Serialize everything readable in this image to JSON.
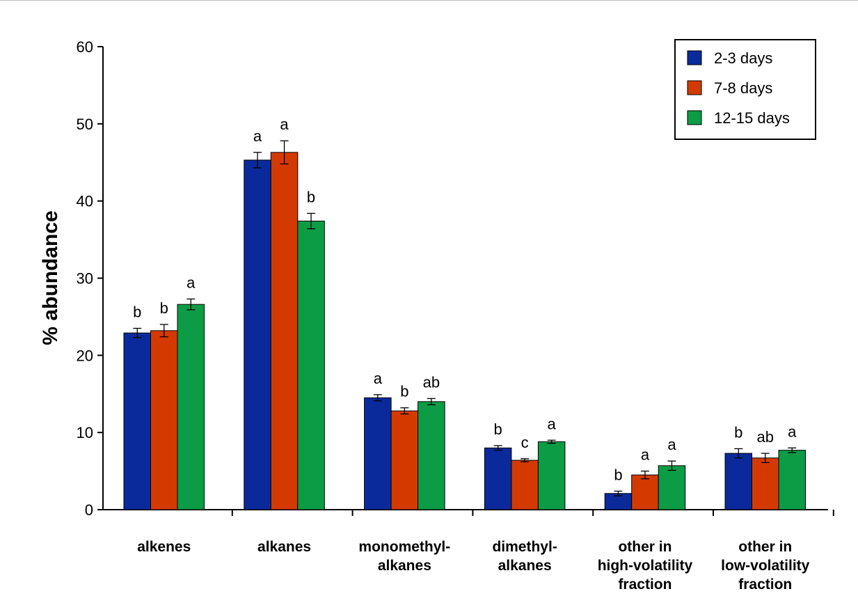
{
  "chart_data": {
    "type": "bar",
    "ylabel": "% abundance",
    "ylim": [
      0,
      60
    ],
    "yticks": [
      0,
      10,
      20,
      30,
      40,
      50,
      60
    ],
    "grid": false,
    "legend_position": "top-right",
    "categories": [
      [
        "alkenes"
      ],
      [
        "alkanes"
      ],
      [
        "monomethyl-",
        "alkanes"
      ],
      [
        "dimethyl-",
        "alkanes"
      ],
      [
        "other in",
        "high-volatility",
        "fraction"
      ],
      [
        "other in",
        "low-volatility",
        "fraction"
      ]
    ],
    "series": [
      {
        "name": "2-3 days",
        "color": "#0a2a9c",
        "values": [
          22.9,
          45.3,
          14.5,
          8.0,
          2.1,
          7.3
        ],
        "errors": [
          0.6,
          1.0,
          0.4,
          0.3,
          0.3,
          0.6
        ],
        "letters": [
          "b",
          "a",
          "a",
          "b",
          "b",
          "b"
        ]
      },
      {
        "name": "7-8 days",
        "color": "#d43a00",
        "values": [
          23.2,
          46.3,
          12.8,
          6.4,
          4.5,
          6.7
        ],
        "errors": [
          0.8,
          1.5,
          0.4,
          0.2,
          0.5,
          0.6
        ],
        "letters": [
          "b",
          "a",
          "b",
          "c",
          "a",
          "ab"
        ]
      },
      {
        "name": "12-15 days",
        "color": "#0b9c45",
        "values": [
          26.6,
          37.4,
          14.0,
          8.8,
          5.7,
          7.7
        ],
        "errors": [
          0.7,
          1.0,
          0.4,
          0.2,
          0.6,
          0.3
        ],
        "letters": [
          "a",
          "b",
          "ab",
          "a",
          "a",
          "a"
        ]
      }
    ]
  }
}
